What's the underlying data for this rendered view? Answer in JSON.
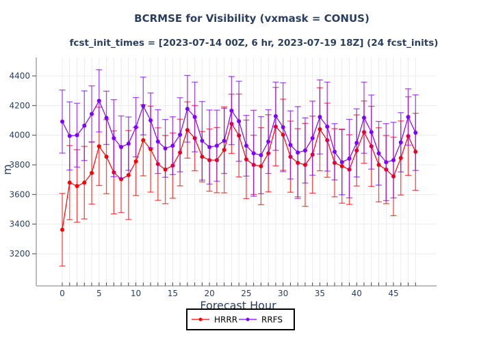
{
  "chart_data": {
    "type": "line",
    "title": "BCRMSE for Visibility (vxmask = CONUS)",
    "subtitle": "fcst_init_times = [2023-07-14 00Z, 6 hr, 2023-07-19 18Z] (24 fcst_inits)",
    "xlabel": "Forecast Hour",
    "ylabel": "m",
    "xlim": [
      -3.5,
      50.5
    ],
    "ylim": [
      3000,
      4520
    ],
    "xticks": [
      0,
      5,
      10,
      15,
      20,
      25,
      30,
      35,
      40,
      45
    ],
    "yticks": [
      3200,
      3400,
      3600,
      3800,
      4000,
      4200,
      4400
    ],
    "grid": true,
    "legend_position": "bottom-center",
    "x": [
      0,
      1,
      2,
      3,
      4,
      5,
      6,
      7,
      8,
      9,
      10,
      11,
      12,
      13,
      14,
      15,
      16,
      17,
      18,
      19,
      20,
      21,
      22,
      23,
      24,
      25,
      26,
      27,
      28,
      29,
      30,
      31,
      32,
      33,
      34,
      35,
      36,
      37,
      38,
      39,
      40,
      41,
      42,
      43,
      44,
      45,
      46,
      47,
      48
    ],
    "series": [
      {
        "name": "HRRR",
        "color": "#ff0000",
        "values": [
          3362,
          3680,
          3657,
          3680,
          3745,
          3925,
          3855,
          3749,
          3703,
          3731,
          3823,
          3966,
          3906,
          3805,
          3768,
          3795,
          3883,
          4035,
          3980,
          3855,
          3832,
          3832,
          3901,
          4077,
          3998,
          3837,
          3800,
          3791,
          3878,
          4058,
          4003,
          3855,
          3814,
          3800,
          3869,
          4040,
          3966,
          3814,
          3791,
          3768,
          3897,
          4021,
          3925,
          3800,
          3768,
          3722,
          3846,
          3994,
          3888
        ],
        "error": [
          245,
          250,
          245,
          245,
          210,
          265,
          250,
          280,
          225,
          300,
          230,
          240,
          290,
          245,
          230,
          220,
          225,
          190,
          220,
          170,
          210,
          220,
          290,
          200,
          280,
          265,
          200,
          260,
          260,
          265,
          240,
          240,
          230,
          280,
          260,
          280,
          250,
          230,
          250,
          235,
          240,
          210,
          270,
          250,
          230,
          265,
          250,
          265,
          260
        ]
      },
      {
        "name": "RRFS",
        "color": "#8000ff",
        "values": [
          4092,
          3995,
          4000,
          4064,
          4143,
          4232,
          4117,
          3980,
          3920,
          3943,
          4054,
          4197,
          4100,
          3957,
          3911,
          3929,
          4003,
          4178,
          4123,
          3962,
          3920,
          3929,
          3962,
          4166,
          4094,
          3929,
          3878,
          3865,
          3957,
          4128,
          4054,
          3934,
          3883,
          3897,
          3980,
          4123,
          4058,
          3888,
          3818,
          3842,
          3948,
          4118,
          4021,
          3878,
          3818,
          3832,
          3952,
          4123,
          4017
        ],
        "error": [
          213,
          230,
          215,
          235,
          190,
          210,
          180,
          260,
          210,
          180,
          200,
          195,
          185,
          215,
          195,
          195,
          250,
          225,
          235,
          265,
          250,
          240,
          220,
          230,
          270,
          205,
          290,
          260,
          215,
          230,
          300,
          230,
          310,
          220,
          250,
          250,
          300,
          190,
          220,
          265,
          230,
          240,
          250,
          215,
          260,
          255,
          200,
          190,
          255
        ]
      }
    ]
  }
}
